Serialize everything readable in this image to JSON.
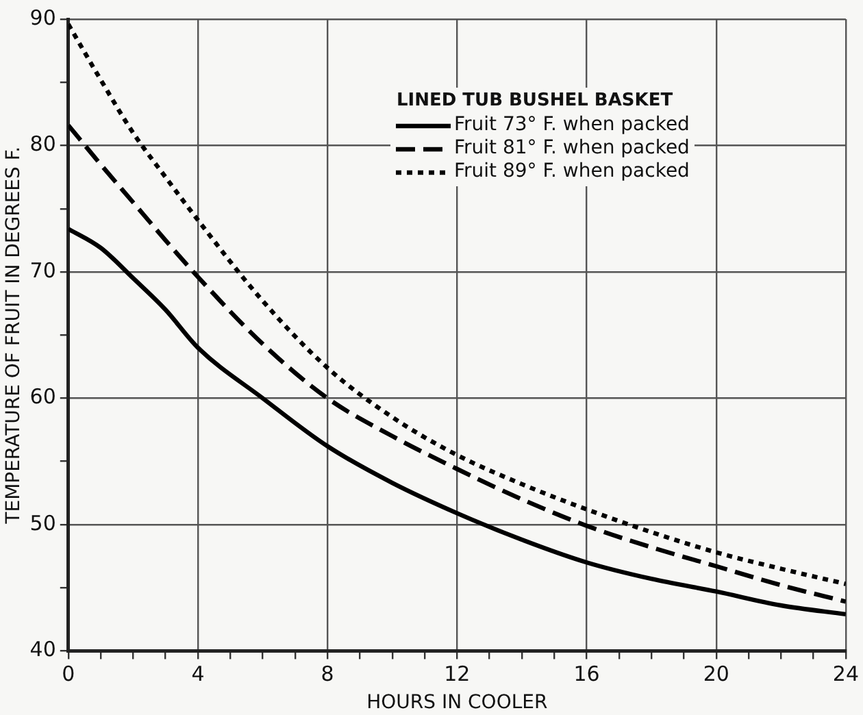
{
  "chart_data": {
    "type": "line",
    "xlabel": "HOURS IN COOLER",
    "ylabel": "TEMPERATURE OF FRUIT IN DEGREES F.",
    "legend_title": "LINED TUB BUSHEL BASKET",
    "x": [
      0,
      1,
      2,
      3,
      4,
      6,
      8,
      10,
      12,
      14,
      16,
      18,
      20,
      22,
      24
    ],
    "series": [
      {
        "name": "Fruit 73° F. when packed",
        "color": "#000000",
        "line_style": "solid",
        "values": [
          73.4,
          71.9,
          69.5,
          67,
          64,
          60,
          56.2,
          53.3,
          50.9,
          48.8,
          47,
          45.7,
          44.7,
          43.6,
          42.9
        ]
      },
      {
        "name": "Fruit 81° F. when packed",
        "color": "#000000",
        "line_style": "dashed",
        "values": [
          81.6,
          78.5,
          75.5,
          72.5,
          69.6,
          64.3,
          60,
          57,
          54.4,
          52,
          49.9,
          48.2,
          46.7,
          45.2,
          43.9
        ]
      },
      {
        "name": "Fruit 89° F. when packed",
        "color": "#000000",
        "line_style": "dotted",
        "values": [
          89.6,
          85.2,
          81,
          77.5,
          74.1,
          67.7,
          62.4,
          58.5,
          55.5,
          53.2,
          51.2,
          49.4,
          47.8,
          46.5,
          45.3
        ]
      }
    ],
    "xlim": [
      0,
      24
    ],
    "xticks": [
      0,
      {
        "value": 1,
        "label": null
      },
      {
        "value": 2,
        "label": null
      },
      {
        "value": 3,
        "label": null
      },
      4,
      {
        "value": 5,
        "label": null
      },
      {
        "value": 6,
        "label": null
      },
      {
        "value": 7,
        "label": null
      },
      8,
      {
        "value": 9,
        "label": null
      },
      {
        "value": 10,
        "label": null
      },
      {
        "value": 11,
        "label": null
      },
      12,
      {
        "value": 13,
        "label": null
      },
      {
        "value": 14,
        "label": null
      },
      {
        "value": 15,
        "label": null
      },
      16,
      {
        "value": 17,
        "label": null
      },
      {
        "value": 18,
        "label": null
      },
      {
        "value": 19,
        "label": null
      },
      20,
      {
        "value": 21,
        "label": null
      },
      {
        "value": 22,
        "label": null
      },
      {
        "value": 23,
        "label": null
      },
      24
    ],
    "ylim": [
      40,
      90
    ],
    "yticks": [
      40,
      {
        "value": 45,
        "label": null
      },
      50,
      {
        "value": 55,
        "label": null
      },
      60,
      {
        "value": 65,
        "label": null
      },
      70,
      {
        "value": 75,
        "label": null
      },
      80,
      {
        "value": 85,
        "label": null
      },
      90
    ],
    "grid": true,
    "legend": "top right",
    "marker": "none"
  }
}
